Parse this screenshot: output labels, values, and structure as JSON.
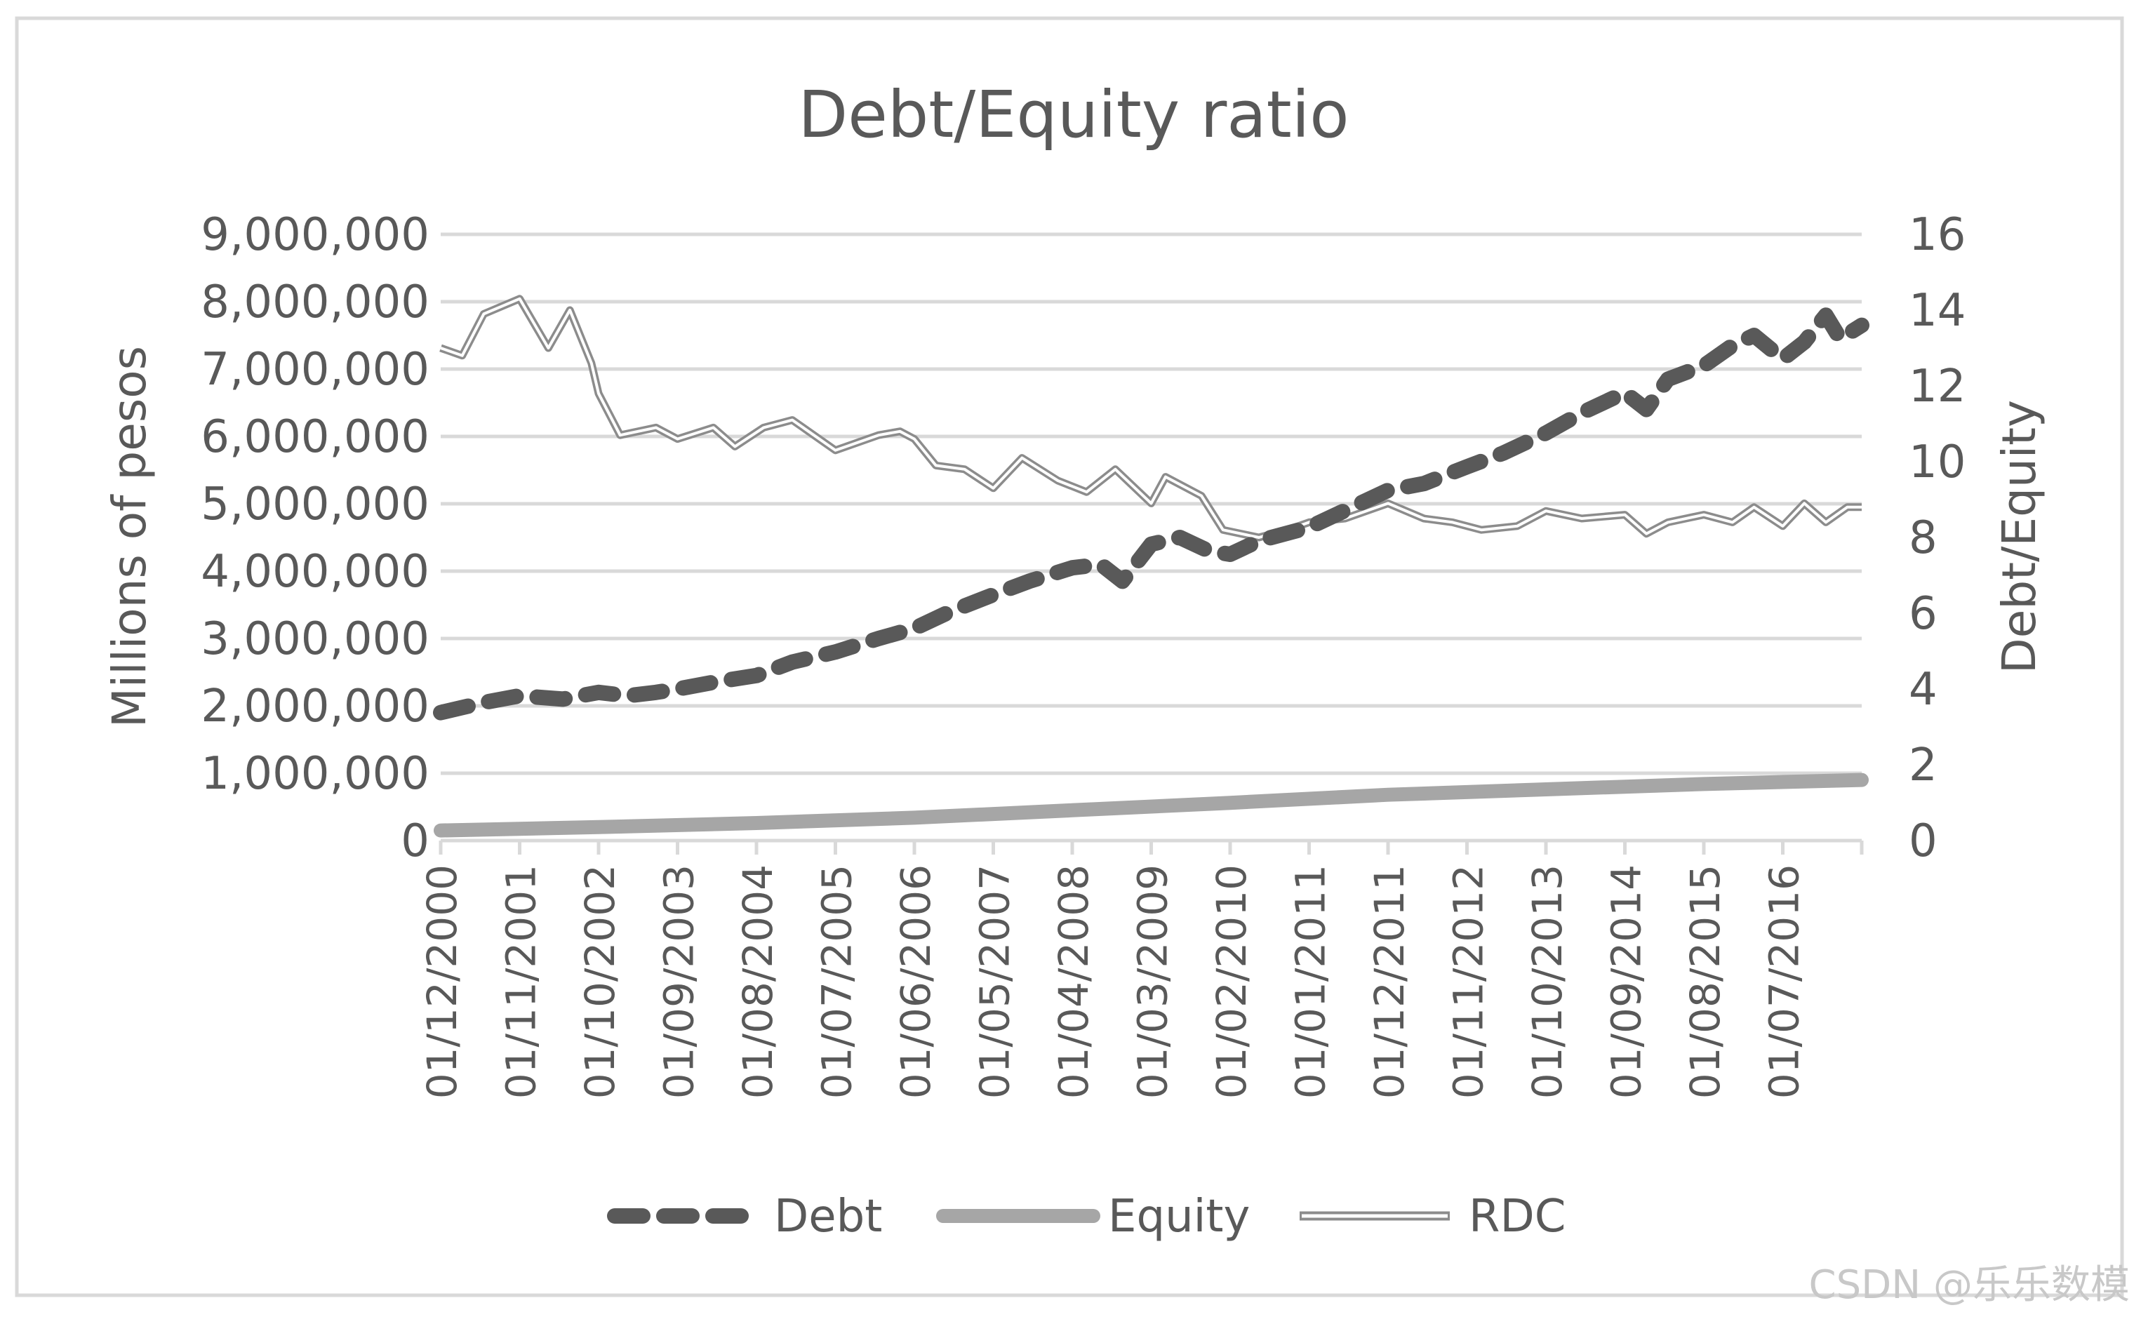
{
  "chart_data": {
    "type": "line",
    "title": "Debt/Equity ratio",
    "ylabel": "Millions of pesos",
    "y2label": "Debt/Equity",
    "ylim": [
      0,
      9000000
    ],
    "y2lim": [
      0,
      16
    ],
    "y_ticks": [
      "0",
      "1,000,000",
      "2,000,000",
      "3,000,000",
      "4,000,000",
      "5,000,000",
      "6,000,000",
      "7,000,000",
      "8,000,000",
      "9,000,000"
    ],
    "y_tick_values": [
      0,
      1000000,
      2000000,
      3000000,
      4000000,
      5000000,
      6000000,
      7000000,
      8000000,
      9000000
    ],
    "y2_ticks": [
      "0",
      "2",
      "4",
      "6",
      "8",
      "10",
      "12",
      "14",
      "16"
    ],
    "y2_tick_values": [
      0,
      2,
      4,
      6,
      8,
      10,
      12,
      14,
      16
    ],
    "x_tick_labels": [
      "01/12/2000",
      "01/11/2001",
      "01/10/2002",
      "01/09/2003",
      "01/08/2004",
      "01/07/2005",
      "01/06/2006",
      "01/05/2007",
      "01/04/2008",
      "01/03/2009",
      "01/02/2010",
      "01/01/2011",
      "01/12/2011",
      "01/11/2012",
      "01/10/2013",
      "01/09/2014",
      "01/08/2015",
      "01/07/2016"
    ],
    "x_tick_dates": [
      "2000-12",
      "2001-11",
      "2002-10",
      "2003-09",
      "2004-08",
      "2005-07",
      "2006-06",
      "2007-05",
      "2008-04",
      "2009-03",
      "2010-02",
      "2011-01",
      "2011-12",
      "2012-11",
      "2013-10",
      "2014-09",
      "2015-08",
      "2016-07"
    ],
    "x_range": [
      "2000-12",
      "2017-06"
    ],
    "grid": true,
    "legend_position": "bottom",
    "series": [
      {
        "name": "Debt",
        "axis": "left",
        "style": "dashed",
        "color": "#595959",
        "points": [
          [
            "2000-12",
            1900000
          ],
          [
            "2001-06",
            2050000
          ],
          [
            "2001-11",
            2150000
          ],
          [
            "2002-05",
            2100000
          ],
          [
            "2002-10",
            2200000
          ],
          [
            "2003-02",
            2150000
          ],
          [
            "2003-06",
            2200000
          ],
          [
            "2003-09",
            2250000
          ],
          [
            "2004-02",
            2350000
          ],
          [
            "2004-08",
            2450000
          ],
          [
            "2005-01",
            2650000
          ],
          [
            "2005-07",
            2800000
          ],
          [
            "2006-01",
            3000000
          ],
          [
            "2006-06",
            3150000
          ],
          [
            "2006-11",
            3400000
          ],
          [
            "2007-05",
            3650000
          ],
          [
            "2007-10",
            3850000
          ],
          [
            "2008-04",
            4050000
          ],
          [
            "2008-08",
            4100000
          ],
          [
            "2008-11",
            3850000
          ],
          [
            "2009-03",
            4400000
          ],
          [
            "2009-07",
            4500000
          ],
          [
            "2009-11",
            4300000
          ],
          [
            "2010-02",
            4250000
          ],
          [
            "2010-06",
            4450000
          ],
          [
            "2011-01",
            4650000
          ],
          [
            "2011-06",
            4900000
          ],
          [
            "2011-12",
            5200000
          ],
          [
            "2012-05",
            5300000
          ],
          [
            "2012-11",
            5550000
          ],
          [
            "2013-04",
            5750000
          ],
          [
            "2013-10",
            6050000
          ],
          [
            "2014-03",
            6350000
          ],
          [
            "2014-09",
            6650000
          ],
          [
            "2014-12",
            6400000
          ],
          [
            "2015-03",
            6850000
          ],
          [
            "2015-08",
            7050000
          ],
          [
            "2015-12",
            7350000
          ],
          [
            "2016-03",
            7500000
          ],
          [
            "2016-07",
            7150000
          ],
          [
            "2016-10",
            7400000
          ],
          [
            "2017-01",
            7800000
          ],
          [
            "2017-03",
            7450000
          ],
          [
            "2017-06",
            7650000
          ]
        ]
      },
      {
        "name": "Equity",
        "axis": "left",
        "style": "solid-thick",
        "color": "#a6a6a6",
        "points": [
          [
            "2000-12",
            150000
          ],
          [
            "2002-10",
            200000
          ],
          [
            "2004-08",
            260000
          ],
          [
            "2006-06",
            340000
          ],
          [
            "2008-04",
            450000
          ],
          [
            "2010-02",
            560000
          ],
          [
            "2011-12",
            680000
          ],
          [
            "2013-10",
            760000
          ],
          [
            "2015-08",
            840000
          ],
          [
            "2017-06",
            900000
          ]
        ]
      },
      {
        "name": "RDC",
        "axis": "right",
        "style": "double",
        "color": "#8c8c8c",
        "points": [
          [
            "2000-12",
            13.0
          ],
          [
            "2001-03",
            12.8
          ],
          [
            "2001-06",
            13.9
          ],
          [
            "2001-11",
            14.3
          ],
          [
            "2002-03",
            13.0
          ],
          [
            "2002-06",
            14.0
          ],
          [
            "2002-09",
            12.6
          ],
          [
            "2002-10",
            11.8
          ],
          [
            "2003-01",
            10.7
          ],
          [
            "2003-06",
            10.9
          ],
          [
            "2003-09",
            10.6
          ],
          [
            "2004-02",
            10.9
          ],
          [
            "2004-05",
            10.4
          ],
          [
            "2004-09",
            10.9
          ],
          [
            "2005-01",
            11.1
          ],
          [
            "2005-07",
            10.3
          ],
          [
            "2006-01",
            10.7
          ],
          [
            "2006-04",
            10.8
          ],
          [
            "2006-06",
            10.6
          ],
          [
            "2006-09",
            9.9
          ],
          [
            "2007-01",
            9.8
          ],
          [
            "2007-05",
            9.3
          ],
          [
            "2007-09",
            10.1
          ],
          [
            "2008-02",
            9.5
          ],
          [
            "2008-06",
            9.2
          ],
          [
            "2008-10",
            9.8
          ],
          [
            "2009-03",
            8.9
          ],
          [
            "2009-05",
            9.6
          ],
          [
            "2009-10",
            9.1
          ],
          [
            "2010-01",
            8.2
          ],
          [
            "2010-06",
            8.0
          ],
          [
            "2010-10",
            8.2
          ],
          [
            "2011-01",
            8.4
          ],
          [
            "2011-06",
            8.5
          ],
          [
            "2011-12",
            8.9
          ],
          [
            "2012-05",
            8.5
          ],
          [
            "2012-09",
            8.4
          ],
          [
            "2013-01",
            8.2
          ],
          [
            "2013-06",
            8.3
          ],
          [
            "2013-10",
            8.7
          ],
          [
            "2014-03",
            8.5
          ],
          [
            "2014-09",
            8.6
          ],
          [
            "2014-12",
            8.1
          ],
          [
            "2015-03",
            8.4
          ],
          [
            "2015-08",
            8.6
          ],
          [
            "2015-12",
            8.4
          ],
          [
            "2016-03",
            8.8
          ],
          [
            "2016-07",
            8.3
          ],
          [
            "2016-10",
            8.9
          ],
          [
            "2017-01",
            8.4
          ],
          [
            "2017-04",
            8.8
          ],
          [
            "2017-06",
            8.8
          ]
        ]
      }
    ]
  },
  "watermark": "CSDN @乐乐数模"
}
